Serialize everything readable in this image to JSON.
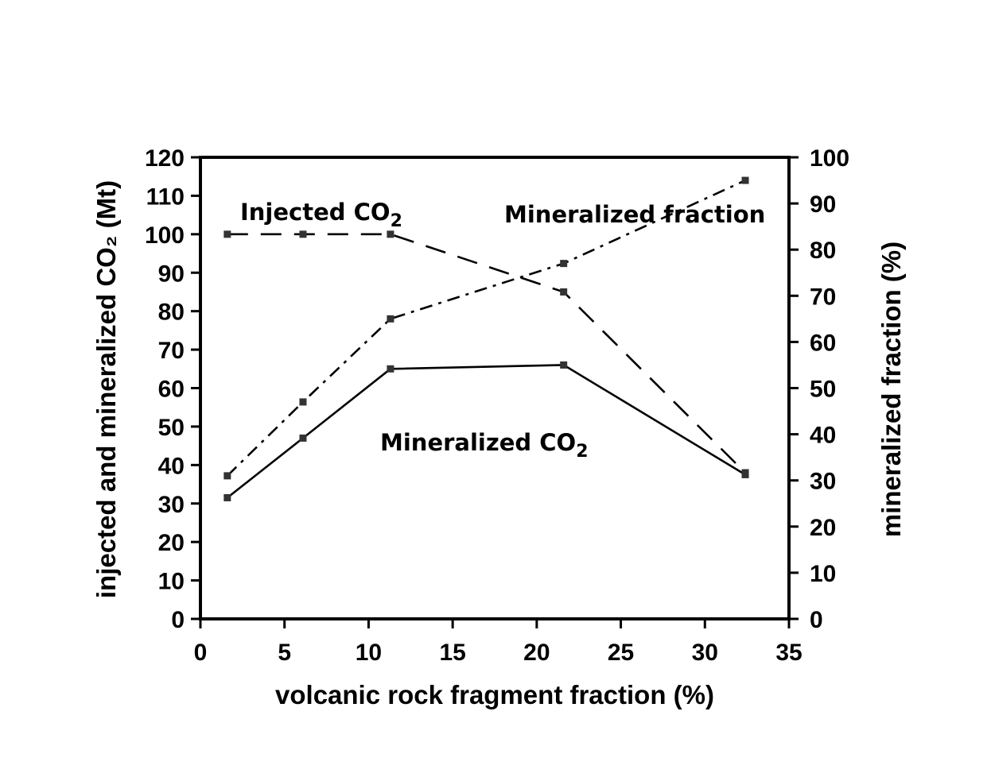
{
  "chart_data": {
    "type": "line",
    "title": "",
    "xlabel": "volcanic rock fragment fraction (%)",
    "ylabel": "injected and mineralized CO₂ (Mt)",
    "y2label": "mineralized fraction (%)",
    "xlim": [
      0,
      35
    ],
    "ylim": [
      0,
      120
    ],
    "y2lim": [
      0,
      100
    ],
    "x_ticks": [
      "0",
      "5",
      "10",
      "15",
      "20",
      "25",
      "30",
      "35"
    ],
    "y_ticks": [
      "0",
      "10",
      "20",
      "30",
      "40",
      "50",
      "60",
      "70",
      "80",
      "90",
      "100",
      "110",
      "120"
    ],
    "y2_ticks": [
      "0",
      "10",
      "20",
      "30",
      "40",
      "50",
      "60",
      "70",
      "80",
      "90",
      "100"
    ],
    "grid": false,
    "legend": "none",
    "series": [
      {
        "name": "Injected CO₂",
        "axis": "left",
        "style": "dashed",
        "x": [
          1.6,
          6.1,
          11.3,
          21.6,
          32.4
        ],
        "values": [
          100,
          100,
          100,
          85,
          38
        ]
      },
      {
        "name": "Mineralized CO₂",
        "axis": "left",
        "style": "solid",
        "x": [
          1.6,
          6.1,
          11.3,
          21.6,
          32.4
        ],
        "values": [
          31.5,
          47,
          65,
          66,
          37.5
        ]
      },
      {
        "name": "Mineralized fraction",
        "axis": "right",
        "style": "dash-dot",
        "x": [
          1.6,
          6.1,
          11.3,
          21.6,
          32.4
        ],
        "values": [
          31,
          47,
          65,
          77,
          95
        ]
      }
    ],
    "annotations": [
      {
        "text": "Injected CO",
        "sub": "2",
        "series": 0
      },
      {
        "text": "Mineralized fraction",
        "sub": "",
        "series": 2
      },
      {
        "text": "Mineralized CO",
        "sub": "2",
        "series": 1
      }
    ]
  }
}
